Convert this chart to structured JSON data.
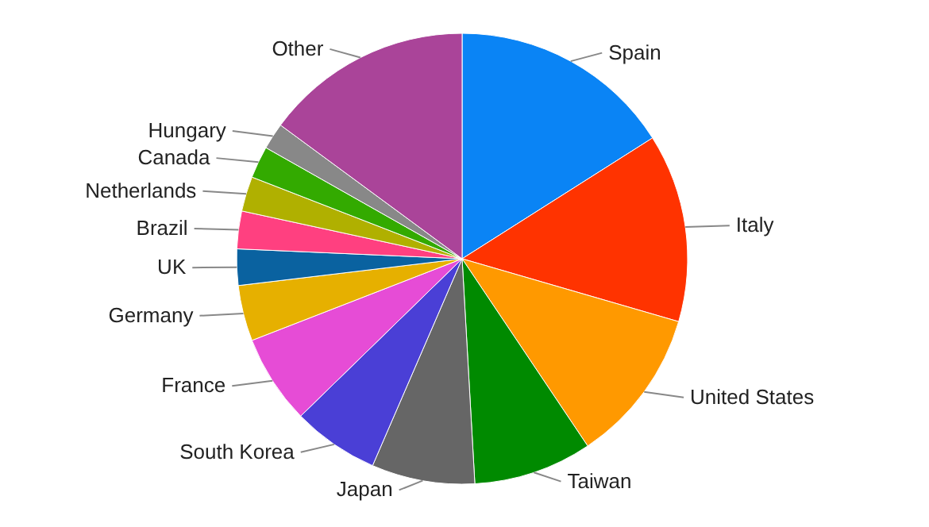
{
  "chart_data": {
    "type": "pie",
    "categories": [
      "Spain",
      "Italy",
      "United States",
      "Taiwan",
      "Japan",
      "South Korea",
      "France",
      "Germany",
      "UK",
      "Brazil",
      "Netherlands",
      "Canada",
      "Hungary",
      "Other"
    ],
    "values": [
      16,
      13.5,
      11.1,
      8.5,
      7.4,
      6.2,
      6.4,
      4,
      2.6,
      2.7,
      2.5,
      2.3,
      1.9,
      14.9
    ],
    "colors": [
      "#0a84f5",
      "#ff3300",
      "#ff9900",
      "#008a00",
      "#666666",
      "#4a3fd6",
      "#e64cd6",
      "#e6b000",
      "#0a62a0",
      "#ff4080",
      "#b0b000",
      "#33aa00",
      "#888888",
      "#aa4499"
    ]
  }
}
